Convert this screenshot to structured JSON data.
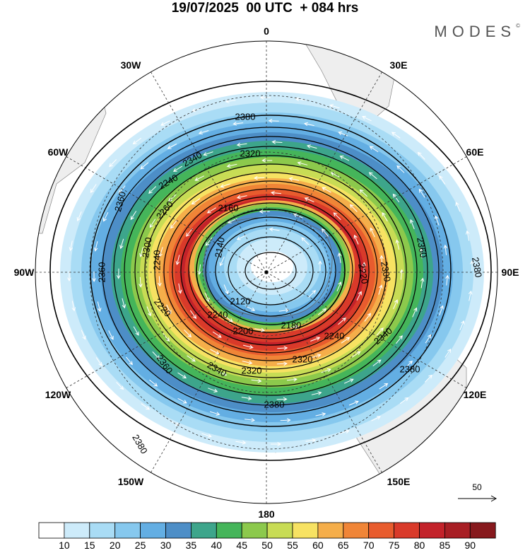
{
  "header": {
    "title": "19/07/2025  00 UTC  + 084 hrs",
    "brand": "MODES",
    "brand_mark": "©"
  },
  "map": {
    "projection": "south-polar-stereographic",
    "longitude_labels": [
      "0",
      "30E",
      "60E",
      "90E",
      "120E",
      "150E",
      "180",
      "150W",
      "120W",
      "90W",
      "60W",
      "30W"
    ],
    "contour_labels": [
      "2380",
      "2380",
      "2380",
      "2380",
      "2380",
      "2360",
      "2360",
      "2360",
      "2360",
      "2340",
      "2340",
      "2340",
      "2320",
      "2320",
      "2320",
      "2300",
      "2300",
      "2260",
      "2240",
      "2240",
      "2240",
      "2240",
      "2220",
      "2220",
      "2200",
      "2180",
      "2160",
      "2140",
      "2120"
    ],
    "vector_reference": {
      "value": "50",
      "icon": "arrow-right-icon"
    }
  },
  "colorbar": {
    "ticks": [
      "10",
      "15",
      "20",
      "25",
      "30",
      "35",
      "40",
      "45",
      "50",
      "55",
      "60",
      "65",
      "70",
      "75",
      "80",
      "85",
      "90"
    ],
    "colors": [
      "#ffffff",
      "#cdebfa",
      "#a9dcf5",
      "#86c8ee",
      "#63aee3",
      "#4d8ec7",
      "#3da58b",
      "#45b55a",
      "#8cc94c",
      "#c8dc55",
      "#f7e262",
      "#f5ae4a",
      "#f08537",
      "#e85c2e",
      "#d93a2a",
      "#c3222a",
      "#a81e24",
      "#87191d"
    ]
  }
}
